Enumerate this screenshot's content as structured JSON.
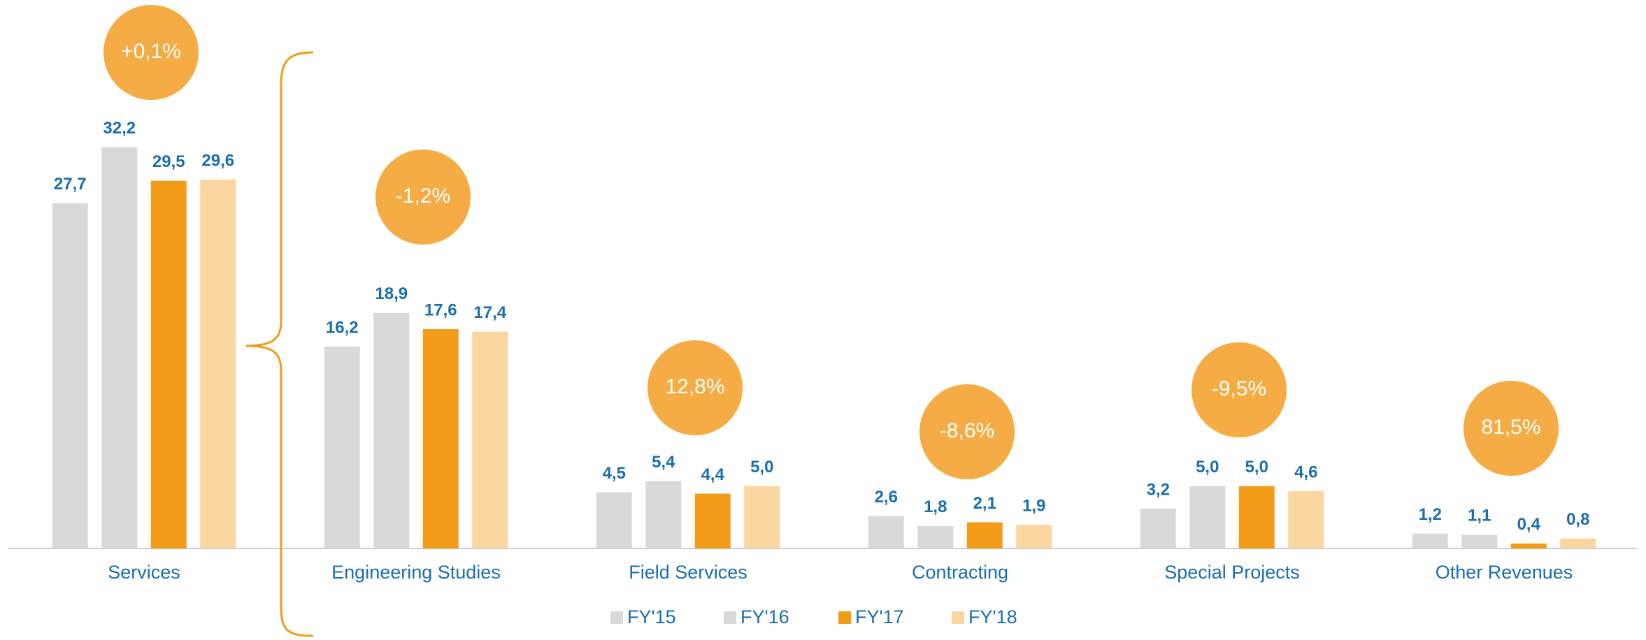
{
  "chart_data": {
    "type": "bar",
    "categories": [
      "Services",
      "Engineering Studies",
      "Field Services",
      "Contracting",
      "Special Projects",
      "Other Revenues"
    ],
    "series": [
      {
        "name": "FY'15",
        "color": "#d9d9d9",
        "values": [
          27.7,
          16.2,
          4.5,
          2.6,
          3.2,
          1.2
        ],
        "value_labels": [
          "27,7",
          "16,2",
          "4,5",
          "2,6",
          "3,2",
          "1,2"
        ]
      },
      {
        "name": "FY'16",
        "color": "#d9d9d9",
        "values": [
          32.2,
          18.9,
          5.4,
          1.8,
          5.0,
          1.1
        ],
        "value_labels": [
          "32,2",
          "18,9",
          "5,4",
          "1,8",
          "5,0",
          "1,1"
        ]
      },
      {
        "name": "FY'17",
        "color": "#f39c1a",
        "values": [
          29.5,
          17.6,
          4.4,
          2.1,
          5.0,
          0.4
        ],
        "value_labels": [
          "29,5",
          "17,6",
          "4,4",
          "2,1",
          "5,0",
          "0,4"
        ]
      },
      {
        "name": "FY'18",
        "color": "#fbd6a0",
        "values": [
          29.6,
          17.4,
          5.0,
          1.9,
          4.6,
          0.8
        ],
        "value_labels": [
          "29,6",
          "17,4",
          "5,0",
          "1,9",
          "4,6",
          "0,8"
        ]
      }
    ],
    "annotations": [
      "+0,1%",
      "-1,2%",
      "12,8%",
      "-8,6%",
      "-9,5%",
      "81,5%"
    ],
    "annotation_color": "#f5ac45"
  }
}
